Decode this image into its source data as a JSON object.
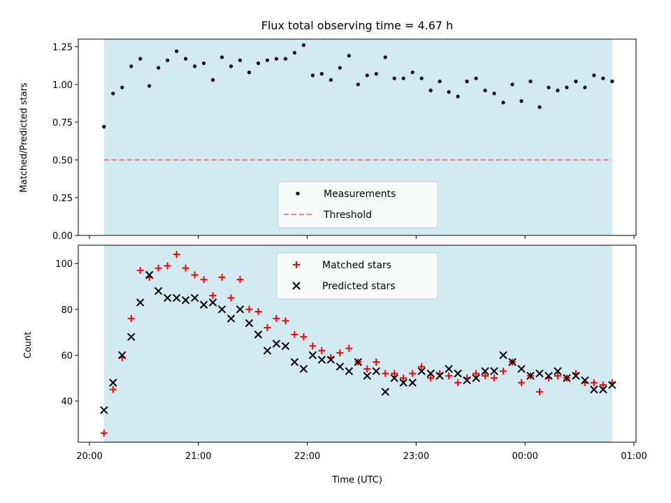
{
  "chart_data": [
    {
      "type": "scatter",
      "title": "Flux total observing time = 4.67 h",
      "ylabel": "Matched/Predicted stars",
      "xlabel": "",
      "ylim": [
        0,
        1.3
      ],
      "xlim": [
        "20:00",
        "01:00"
      ],
      "yticks": [
        "0.00",
        "0.25",
        "0.50",
        "0.75",
        "1.00",
        "1.25"
      ],
      "shaded_region": [
        "20:08",
        "00:48"
      ],
      "shade_color": "#add8e6",
      "legend_position": "lower center",
      "legend": [
        {
          "label": "Measurements",
          "marker": "dot",
          "color": "#000000"
        },
        {
          "label": "Threshold",
          "marker": "dashed-line",
          "color": "#f08080"
        }
      ],
      "threshold": 0.5,
      "series": [
        {
          "name": "Measurements",
          "color": "#000000",
          "points": [
            [
              "20:08",
              0.72
            ],
            [
              "20:13",
              0.94
            ],
            [
              "20:18",
              0.98
            ],
            [
              "20:23",
              1.12
            ],
            [
              "20:28",
              1.17
            ],
            [
              "20:33",
              0.99
            ],
            [
              "20:38",
              1.11
            ],
            [
              "20:43",
              1.16
            ],
            [
              "20:48",
              1.22
            ],
            [
              "20:53",
              1.17
            ],
            [
              "20:58",
              1.12
            ],
            [
              "21:03",
              1.14
            ],
            [
              "21:08",
              1.03
            ],
            [
              "21:13",
              1.18
            ],
            [
              "21:18",
              1.12
            ],
            [
              "21:23",
              1.16
            ],
            [
              "21:28",
              1.08
            ],
            [
              "21:33",
              1.14
            ],
            [
              "21:38",
              1.16
            ],
            [
              "21:43",
              1.17
            ],
            [
              "21:48",
              1.17
            ],
            [
              "21:53",
              1.21
            ],
            [
              "21:58",
              1.26
            ],
            [
              "22:03",
              1.06
            ],
            [
              "22:08",
              1.07
            ],
            [
              "22:13",
              1.03
            ],
            [
              "22:18",
              1.11
            ],
            [
              "22:23",
              1.19
            ],
            [
              "22:28",
              1.0
            ],
            [
              "22:33",
              1.06
            ],
            [
              "22:38",
              1.07
            ],
            [
              "22:43",
              1.18
            ],
            [
              "22:48",
              1.04
            ],
            [
              "22:53",
              1.04
            ],
            [
              "22:58",
              1.08
            ],
            [
              "23:03",
              1.04
            ],
            [
              "23:08",
              0.96
            ],
            [
              "23:13",
              1.02
            ],
            [
              "23:18",
              0.95
            ],
            [
              "23:23",
              0.92
            ],
            [
              "23:28",
              1.02
            ],
            [
              "23:33",
              1.04
            ],
            [
              "23:38",
              0.96
            ],
            [
              "23:43",
              0.94
            ],
            [
              "23:48",
              0.88
            ],
            [
              "23:53",
              1.0
            ],
            [
              "23:58",
              0.89
            ],
            [
              "00:03",
              1.02
            ],
            [
              "00:08",
              0.85
            ],
            [
              "00:13",
              0.98
            ],
            [
              "00:18",
              0.96
            ],
            [
              "00:23",
              0.98
            ],
            [
              "00:28",
              1.02
            ],
            [
              "00:33",
              0.98
            ],
            [
              "00:38",
              1.06
            ],
            [
              "00:43",
              1.04
            ],
            [
              "00:48",
              1.02
            ]
          ]
        }
      ]
    },
    {
      "type": "scatter",
      "title": "",
      "ylabel": "Count",
      "xlabel": "Time (UTC)",
      "ylim": [
        22,
        108
      ],
      "xlim": [
        "20:00",
        "01:00"
      ],
      "yticks": [
        "40",
        "60",
        "80",
        "100"
      ],
      "xticks": [
        "20:00",
        "21:00",
        "22:00",
        "23:00",
        "00:00",
        "01:00"
      ],
      "shaded_region": [
        "20:08",
        "00:48"
      ],
      "shade_color": "#add8e6",
      "legend_position": "upper center",
      "legend": [
        {
          "label": "Matched stars",
          "marker": "plus",
          "color": "#ff0000"
        },
        {
          "label": "Predicted stars",
          "marker": "x",
          "color": "#000000"
        }
      ],
      "series": [
        {
          "name": "Matched stars",
          "color": "#ff0000",
          "marker": "plus",
          "points": [
            [
              "20:08",
              26
            ],
            [
              "20:13",
              45
            ],
            [
              "20:18",
              59
            ],
            [
              "20:23",
              76
            ],
            [
              "20:28",
              97
            ],
            [
              "20:33",
              94
            ],
            [
              "20:38",
              98
            ],
            [
              "20:43",
              99
            ],
            [
              "20:48",
              104
            ],
            [
              "20:53",
              98
            ],
            [
              "20:58",
              95
            ],
            [
              "21:03",
              93
            ],
            [
              "21:08",
              86
            ],
            [
              "21:13",
              94
            ],
            [
              "21:18",
              85
            ],
            [
              "21:23",
              93
            ],
            [
              "21:28",
              80
            ],
            [
              "21:33",
              79
            ],
            [
              "21:38",
              72
            ],
            [
              "21:43",
              76
            ],
            [
              "21:48",
              75
            ],
            [
              "21:53",
              69
            ],
            [
              "21:58",
              68
            ],
            [
              "22:03",
              64
            ],
            [
              "22:08",
              62
            ],
            [
              "22:13",
              59
            ],
            [
              "22:18",
              61
            ],
            [
              "22:23",
              63
            ],
            [
              "22:28",
              57
            ],
            [
              "22:33",
              54
            ],
            [
              "22:38",
              57
            ],
            [
              "22:43",
              52
            ],
            [
              "22:48",
              52
            ],
            [
              "22:53",
              50
            ],
            [
              "22:58",
              52
            ],
            [
              "23:03",
              55
            ],
            [
              "23:08",
              50
            ],
            [
              "23:13",
              52
            ],
            [
              "23:18",
              51
            ],
            [
              "23:23",
              48
            ],
            [
              "23:28",
              50
            ],
            [
              "23:33",
              52
            ],
            [
              "23:38",
              51
            ],
            [
              "23:43",
              50
            ],
            [
              "23:48",
              53
            ],
            [
              "23:53",
              57
            ],
            [
              "23:58",
              48
            ],
            [
              "00:03",
              51
            ],
            [
              "00:08",
              44
            ],
            [
              "00:13",
              50
            ],
            [
              "00:18",
              51
            ],
            [
              "00:23",
              50
            ],
            [
              "00:28",
              52
            ],
            [
              "00:33",
              48
            ],
            [
              "00:38",
              48
            ],
            [
              "00:43",
              47
            ],
            [
              "00:48",
              48
            ]
          ]
        },
        {
          "name": "Predicted stars",
          "color": "#000000",
          "marker": "x",
          "points": [
            [
              "20:08",
              36
            ],
            [
              "20:13",
              48
            ],
            [
              "20:18",
              60
            ],
            [
              "20:23",
              68
            ],
            [
              "20:28",
              83
            ],
            [
              "20:33",
              95
            ],
            [
              "20:38",
              88
            ],
            [
              "20:43",
              85
            ],
            [
              "20:48",
              85
            ],
            [
              "20:53",
              84
            ],
            [
              "20:58",
              85
            ],
            [
              "21:03",
              82
            ],
            [
              "21:08",
              83
            ],
            [
              "21:13",
              80
            ],
            [
              "21:18",
              76
            ],
            [
              "21:23",
              80
            ],
            [
              "21:28",
              74
            ],
            [
              "21:33",
              69
            ],
            [
              "21:38",
              62
            ],
            [
              "21:43",
              65
            ],
            [
              "21:48",
              64
            ],
            [
              "21:53",
              57
            ],
            [
              "21:58",
              54
            ],
            [
              "22:03",
              60
            ],
            [
              "22:08",
              58
            ],
            [
              "22:13",
              58
            ],
            [
              "22:18",
              55
            ],
            [
              "22:23",
              53
            ],
            [
              "22:28",
              57
            ],
            [
              "22:33",
              51
            ],
            [
              "22:38",
              53
            ],
            [
              "22:43",
              44
            ],
            [
              "22:48",
              50
            ],
            [
              "22:53",
              48
            ],
            [
              "22:58",
              48
            ],
            [
              "23:03",
              53
            ],
            [
              "23:08",
              52
            ],
            [
              "23:13",
              51
            ],
            [
              "23:18",
              54
            ],
            [
              "23:23",
              52
            ],
            [
              "23:28",
              49
            ],
            [
              "23:33",
              50
            ],
            [
              "23:38",
              53
            ],
            [
              "23:43",
              53
            ],
            [
              "23:48",
              60
            ],
            [
              "23:53",
              57
            ],
            [
              "23:58",
              54
            ],
            [
              "00:03",
              51
            ],
            [
              "00:08",
              52
            ],
            [
              "00:13",
              51
            ],
            [
              "00:18",
              53
            ],
            [
              "00:23",
              50
            ],
            [
              "00:28",
              51
            ],
            [
              "00:33",
              49
            ],
            [
              "00:38",
              45
            ],
            [
              "00:43",
              45
            ],
            [
              "00:48",
              47
            ]
          ]
        }
      ]
    }
  ]
}
